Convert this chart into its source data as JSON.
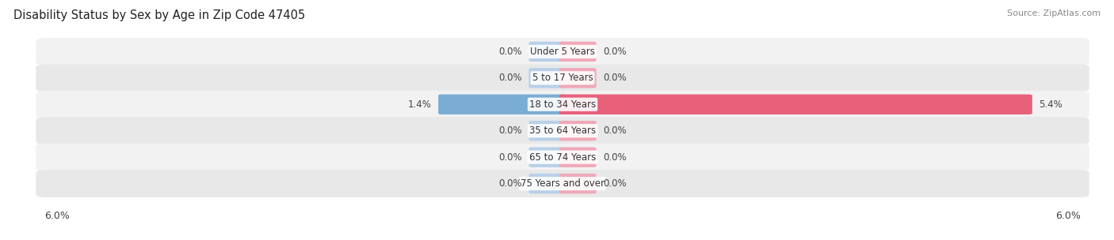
{
  "title": "Disability Status by Sex by Age in Zip Code 47405",
  "source": "Source: ZipAtlas.com",
  "categories": [
    "Under 5 Years",
    "5 to 17 Years",
    "18 to 34 Years",
    "35 to 64 Years",
    "65 to 74 Years",
    "75 Years and over"
  ],
  "male_values": [
    0.0,
    0.0,
    1.4,
    0.0,
    0.0,
    0.0
  ],
  "female_values": [
    0.0,
    0.0,
    5.4,
    0.0,
    0.0,
    0.0
  ],
  "male_color": "#7badd4",
  "male_color_light": "#b8d0e8",
  "female_color": "#e8607a",
  "female_color_light": "#f0a8b8",
  "row_bg_color_odd": "#f2f2f2",
  "row_bg_color_even": "#e8e8e8",
  "xlim": 6.0,
  "stub_size": 0.35,
  "title_fontsize": 10.5,
  "source_fontsize": 8,
  "value_label_fontsize": 8.5,
  "category_fontsize": 8.5,
  "legend_fontsize": 9,
  "axis_label_fontsize": 9,
  "background_color": "#ffffff"
}
